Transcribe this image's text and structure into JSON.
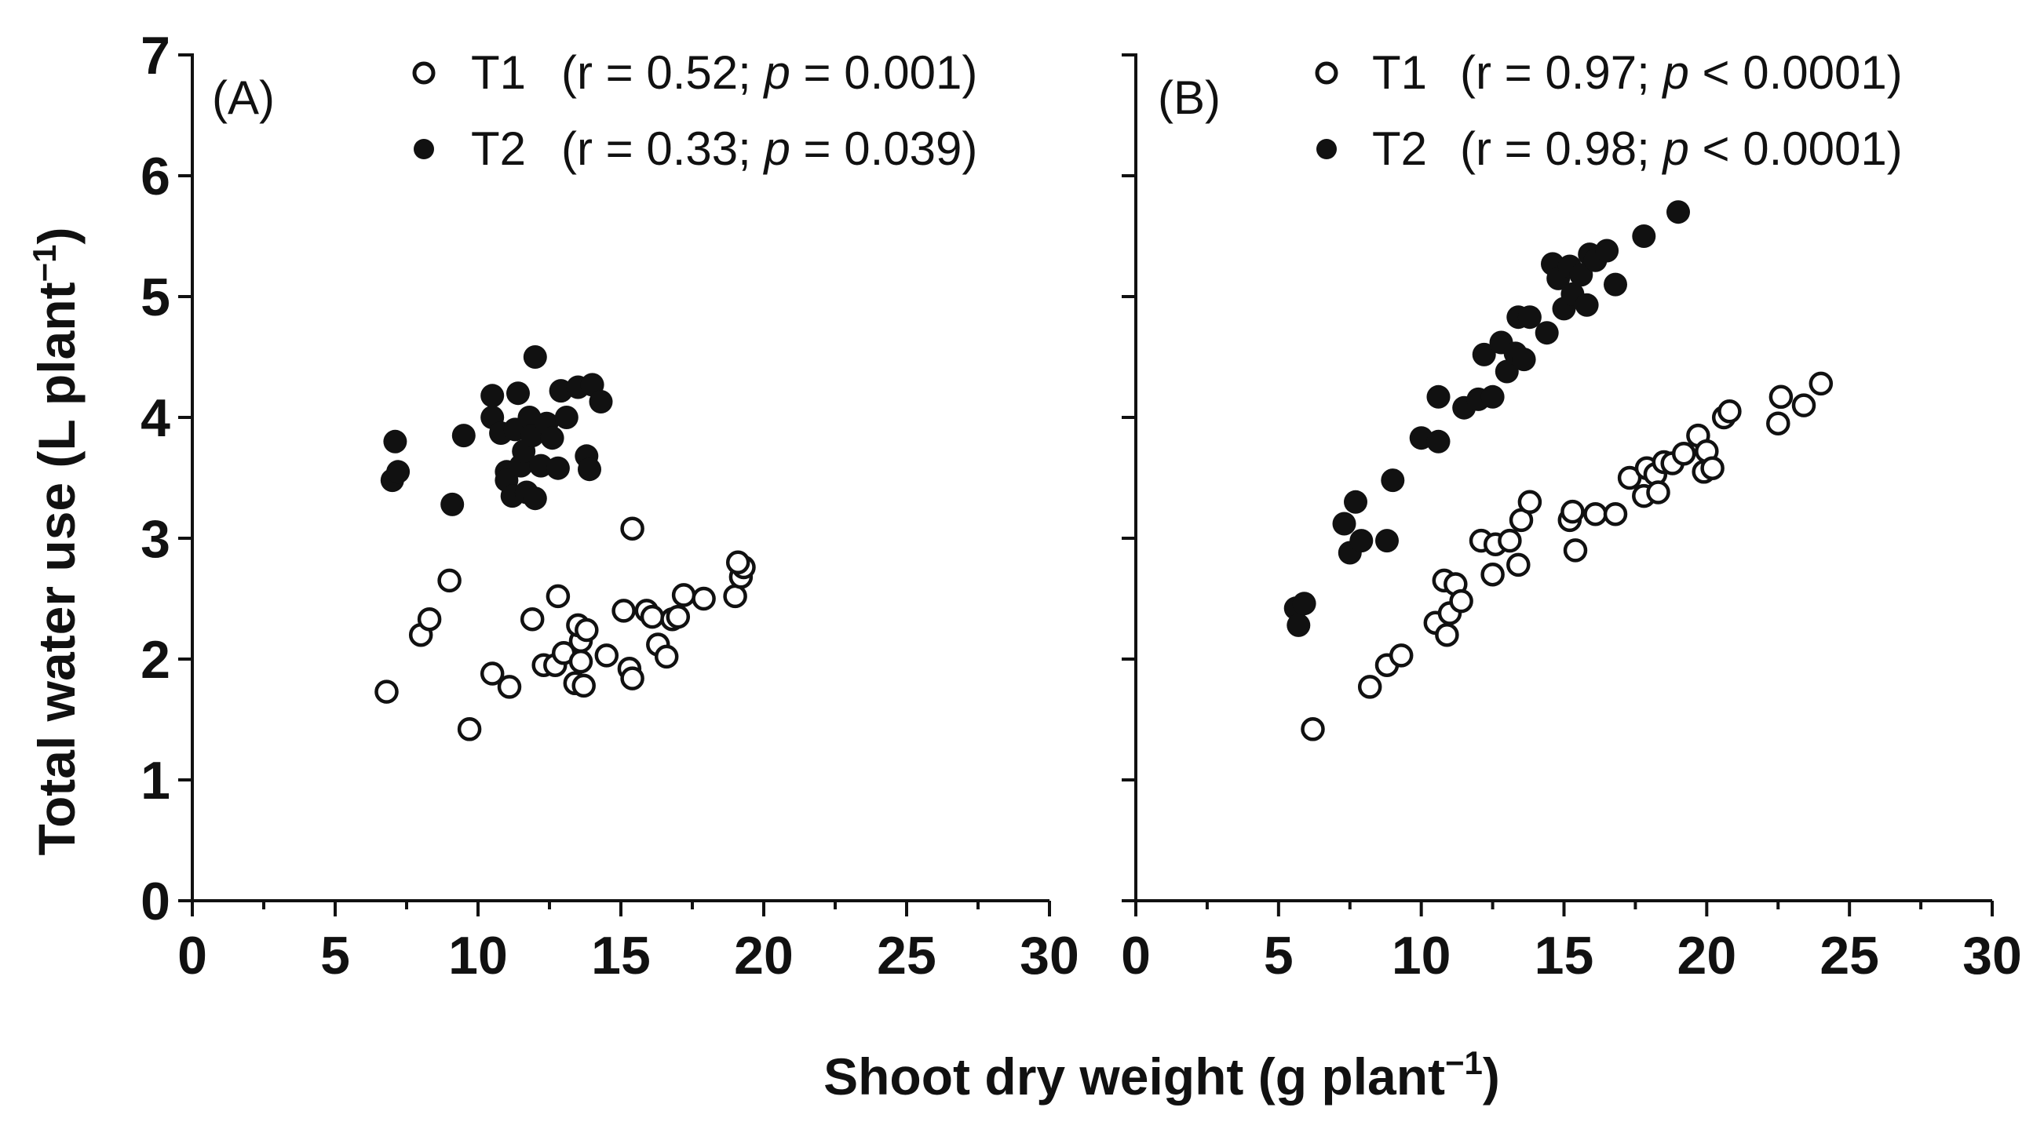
{
  "figure": {
    "xlabel": "Shoot dry weight (g plant",
    "xlabel_exp": "−1",
    "xlabel_end": ")",
    "ylabel": "Total water use  (L plant",
    "ylabel_exp": "−1",
    "ylabel_end": ")"
  },
  "chart_data": [
    {
      "type": "scatter",
      "panel": "(A)",
      "xlim": [
        0,
        30
      ],
      "ylim": [
        0,
        7
      ],
      "xticks": [
        "0",
        "5",
        "10",
        "15",
        "20",
        "25",
        "30"
      ],
      "yticks": [
        "0",
        "1",
        "2",
        "3",
        "4",
        "5",
        "6",
        "7"
      ],
      "series": [
        {
          "name": "T1",
          "stats": {
            "open": "(r = 0.52; ",
            "p": "p",
            "rest": " = 0.001)"
          },
          "marker": "open-circle",
          "points": [
            [
              6.8,
              1.73
            ],
            [
              9.7,
              1.42
            ],
            [
              8.0,
              2.2
            ],
            [
              8.3,
              2.33
            ],
            [
              9.0,
              2.65
            ],
            [
              10.5,
              1.88
            ],
            [
              11.1,
              1.77
            ],
            [
              11.9,
              2.33
            ],
            [
              12.3,
              1.95
            ],
            [
              12.7,
              1.95
            ],
            [
              12.8,
              2.52
            ],
            [
              13.0,
              2.05
            ],
            [
              13.4,
              1.8
            ],
            [
              13.6,
              2.15
            ],
            [
              13.5,
              2.28
            ],
            [
              13.6,
              1.98
            ],
            [
              13.8,
              2.24
            ],
            [
              13.7,
              1.78
            ],
            [
              14.5,
              2.03
            ],
            [
              15.1,
              2.4
            ],
            [
              15.3,
              1.92
            ],
            [
              15.4,
              1.84
            ],
            [
              15.4,
              3.08
            ],
            [
              15.9,
              2.4
            ],
            [
              16.1,
              2.35
            ],
            [
              16.3,
              2.12
            ],
            [
              16.6,
              2.02
            ],
            [
              16.8,
              2.33
            ],
            [
              17.0,
              2.35
            ],
            [
              17.2,
              2.53
            ],
            [
              17.9,
              2.5
            ],
            [
              19.0,
              2.52
            ],
            [
              19.2,
              2.68
            ],
            [
              19.3,
              2.76
            ],
            [
              19.1,
              2.8
            ]
          ]
        },
        {
          "name": "T2",
          "stats": {
            "open": "(r = 0.33; ",
            "p": "p",
            "rest": " = 0.039)"
          },
          "marker": "filled-circle",
          "points": [
            [
              7.0,
              3.48
            ],
            [
              7.2,
              3.55
            ],
            [
              7.1,
              3.8
            ],
            [
              9.1,
              3.28
            ],
            [
              9.5,
              3.85
            ],
            [
              10.5,
              4.18
            ],
            [
              10.5,
              4.0
            ],
            [
              10.8,
              3.87
            ],
            [
              11.0,
              3.55
            ],
            [
              11.0,
              3.48
            ],
            [
              11.2,
              3.35
            ],
            [
              11.3,
              3.9
            ],
            [
              11.4,
              4.2
            ],
            [
              11.5,
              3.6
            ],
            [
              11.6,
              3.72
            ],
            [
              11.7,
              3.38
            ],
            [
              11.8,
              4.0
            ],
            [
              11.9,
              3.85
            ],
            [
              12.0,
              3.33
            ],
            [
              12.0,
              4.5
            ],
            [
              12.2,
              3.6
            ],
            [
              12.4,
              3.95
            ],
            [
              12.6,
              3.83
            ],
            [
              12.8,
              3.58
            ],
            [
              12.9,
              4.22
            ],
            [
              13.1,
              4.0
            ],
            [
              13.5,
              4.25
            ],
            [
              13.8,
              3.68
            ],
            [
              13.9,
              3.57
            ],
            [
              14.0,
              4.27
            ],
            [
              14.3,
              4.13
            ]
          ]
        }
      ]
    },
    {
      "type": "scatter",
      "panel": "(B)",
      "xlim": [
        0,
        30
      ],
      "ylim": [
        0,
        7
      ],
      "xticks": [
        "0",
        "5",
        "10",
        "15",
        "20",
        "25",
        "30"
      ],
      "yticks": [
        "0",
        "1",
        "2",
        "3",
        "4",
        "5",
        "6",
        "7"
      ],
      "series": [
        {
          "name": "T1",
          "stats": {
            "open": "(r = 0.97; ",
            "p": "p",
            "rest": " < 0.0001)"
          },
          "marker": "open-circle",
          "points": [
            [
              6.2,
              1.42
            ],
            [
              8.2,
              1.77
            ],
            [
              8.8,
              1.95
            ],
            [
              9.3,
              2.03
            ],
            [
              10.5,
              2.3
            ],
            [
              10.8,
              2.65
            ],
            [
              10.9,
              2.2
            ],
            [
              11.0,
              2.38
            ],
            [
              11.2,
              2.62
            ],
            [
              11.4,
              2.48
            ],
            [
              12.1,
              2.98
            ],
            [
              12.5,
              2.7
            ],
            [
              12.6,
              2.95
            ],
            [
              13.1,
              2.98
            ],
            [
              13.4,
              2.78
            ],
            [
              13.5,
              3.15
            ],
            [
              13.8,
              3.3
            ],
            [
              15.2,
              3.15
            ],
            [
              15.3,
              3.22
            ],
            [
              15.4,
              2.9
            ],
            [
              16.1,
              3.2
            ],
            [
              16.8,
              3.2
            ],
            [
              17.3,
              3.5
            ],
            [
              17.8,
              3.35
            ],
            [
              17.9,
              3.58
            ],
            [
              18.2,
              3.53
            ],
            [
              18.3,
              3.38
            ],
            [
              18.5,
              3.63
            ],
            [
              18.8,
              3.62
            ],
            [
              19.2,
              3.7
            ],
            [
              19.7,
              3.85
            ],
            [
              19.9,
              3.55
            ],
            [
              20.0,
              3.72
            ],
            [
              20.2,
              3.58
            ],
            [
              20.6,
              4.0
            ],
            [
              20.8,
              4.05
            ],
            [
              22.5,
              3.95
            ],
            [
              22.6,
              4.17
            ],
            [
              23.4,
              4.1
            ],
            [
              24.0,
              4.28
            ]
          ]
        },
        {
          "name": "T2",
          "stats": {
            "open": "(r = 0.98; ",
            "p": "p",
            "rest": " < 0.0001)"
          },
          "marker": "filled-circle",
          "points": [
            [
              5.6,
              2.42
            ],
            [
              5.7,
              2.28
            ],
            [
              5.9,
              2.46
            ],
            [
              7.3,
              3.12
            ],
            [
              7.5,
              2.88
            ],
            [
              7.7,
              3.3
            ],
            [
              7.9,
              2.98
            ],
            [
              8.8,
              2.98
            ],
            [
              9.0,
              3.48
            ],
            [
              10.0,
              3.83
            ],
            [
              10.6,
              3.8
            ],
            [
              10.6,
              4.17
            ],
            [
              11.5,
              4.08
            ],
            [
              12.0,
              4.15
            ],
            [
              12.2,
              4.52
            ],
            [
              12.5,
              4.17
            ],
            [
              12.8,
              4.62
            ],
            [
              13.0,
              4.38
            ],
            [
              13.3,
              4.53
            ],
            [
              13.4,
              4.83
            ],
            [
              13.6,
              4.48
            ],
            [
              13.8,
              4.83
            ],
            [
              14.4,
              4.7
            ],
            [
              14.6,
              5.27
            ],
            [
              14.8,
              5.15
            ],
            [
              15.0,
              4.9
            ],
            [
              15.2,
              5.25
            ],
            [
              15.3,
              5.02
            ],
            [
              15.6,
              5.18
            ],
            [
              15.8,
              4.93
            ],
            [
              15.9,
              5.35
            ],
            [
              16.1,
              5.3
            ],
            [
              16.5,
              5.38
            ],
            [
              16.8,
              5.1
            ],
            [
              17.8,
              5.5
            ],
            [
              19.0,
              5.7
            ]
          ]
        }
      ]
    }
  ]
}
